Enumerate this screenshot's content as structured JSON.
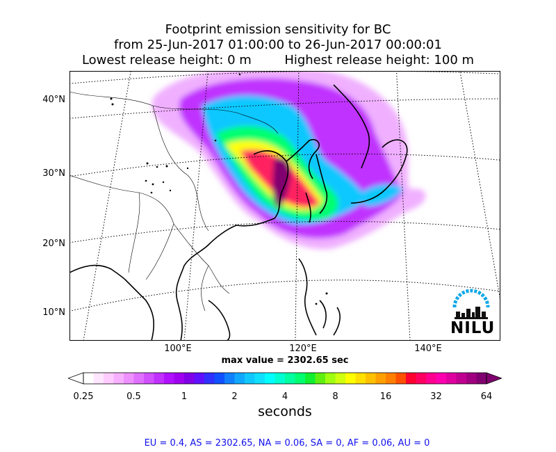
{
  "title": {
    "line1": "Footprint emission sensitivity for BC",
    "line2": "from 25-Jun-2017 01:00:00 to 26-Jun-2017 00:00:01",
    "line3_left": "Lowest release height: 0 m",
    "line3_right": "Highest release height: 100 m"
  },
  "map": {
    "lat_labels": [
      "40°N",
      "30°N",
      "20°N",
      "10°N"
    ],
    "lon_labels": [
      "100°E",
      "120°E",
      "140°E"
    ],
    "logo_text": "NILU",
    "max_value_text": "max value = 2302.65 sec"
  },
  "colorbar": {
    "ticks": [
      "0.25",
      "0.5",
      "1",
      "2",
      "4",
      "8",
      "16",
      "32",
      "64"
    ],
    "units": "seconds",
    "colors": [
      "#ffffff",
      "#ffe6ff",
      "#ffccff",
      "#f7b0ff",
      "#ee90ff",
      "#e070ff",
      "#d050ff",
      "#c030ff",
      "#b010ff",
      "#a000f0",
      "#8000e8",
      "#6010ff",
      "#3030ff",
      "#1050ff",
      "#1080ff",
      "#10a8ff",
      "#10c8ff",
      "#10e0ff",
      "#00ffff",
      "#00ffd0",
      "#00ffa0",
      "#00ff70",
      "#10f030",
      "#60f010",
      "#a0ff10",
      "#d0ff10",
      "#ffff00",
      "#ffe000",
      "#ffc000",
      "#ffa000",
      "#ff8000",
      "#ff5000",
      "#ff0030",
      "#ff0060",
      "#ff0090",
      "#ff00b0",
      "#e000a0",
      "#c00090",
      "#a00080",
      "#800070"
    ]
  },
  "stats": "EU = 0.4,  AS = 2302.65,  NA = 0.06,  SA = 0,  AF = 0.06,  AU = 0"
}
